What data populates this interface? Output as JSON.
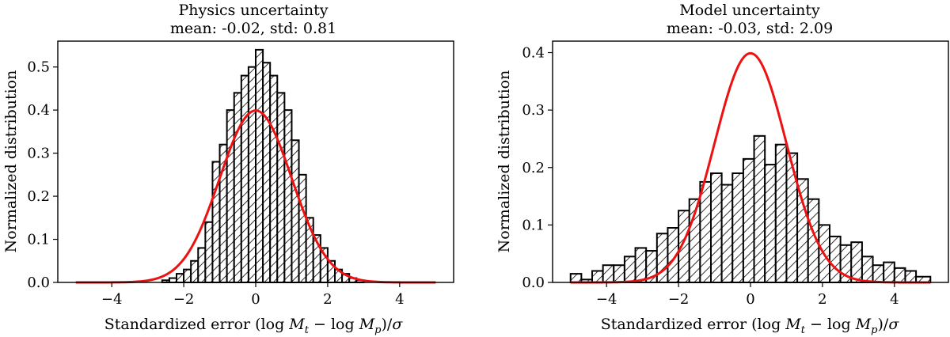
{
  "chart_data": [
    {
      "type": "histogram",
      "title": "Physics uncertainty",
      "subtitle": "mean: -0.02, std: 0.81",
      "xlabel": "Standardized error (log M_t − log M_p)/σ",
      "ylabel": "Normalized distribution",
      "xlim": [
        -5.5,
        5.5
      ],
      "ylim": [
        0,
        0.56
      ],
      "xticks": [
        -4,
        -2,
        0,
        2,
        4
      ],
      "xtick_labels": [
        "−4",
        "−2",
        "0",
        "2",
        "4"
      ],
      "yticks": [
        0.0,
        0.1,
        0.2,
        0.3,
        0.4,
        0.5
      ],
      "ytick_labels": [
        "0.0",
        "0.1",
        "0.2",
        "0.3",
        "0.4",
        "0.5"
      ],
      "bin_edges": [
        -2.8,
        -2.6,
        -2.4,
        -2.2,
        -2.0,
        -1.8,
        -1.6,
        -1.4,
        -1.2,
        -1.0,
        -0.8,
        -0.6,
        -0.4,
        -0.2,
        0.0,
        0.2,
        0.4,
        0.6,
        0.8,
        1.0,
        1.2,
        1.4,
        1.6,
        1.8,
        2.0,
        2.2,
        2.4,
        2.6,
        2.8,
        3.0
      ],
      "bin_values": [
        0.0,
        0.005,
        0.01,
        0.02,
        0.03,
        0.05,
        0.08,
        0.14,
        0.28,
        0.32,
        0.4,
        0.44,
        0.48,
        0.5,
        0.54,
        0.51,
        0.48,
        0.44,
        0.4,
        0.33,
        0.25,
        0.15,
        0.11,
        0.08,
        0.05,
        0.03,
        0.02,
        0.01,
        0.005
      ],
      "reference_curve": {
        "type": "normal",
        "mean": 0,
        "std": 1,
        "range": [
          -5,
          5
        ],
        "color": "#ee1111"
      },
      "grid": false
    },
    {
      "type": "histogram",
      "title": "Model uncertainty",
      "subtitle": "mean: -0.03, std: 2.09",
      "xlabel": "Standardized error (log M_t − log M_p)/σ",
      "ylabel": "Normalized distribution",
      "xlim": [
        -5.5,
        5.5
      ],
      "ylim": [
        0,
        0.42
      ],
      "xticks": [
        -4,
        -2,
        0,
        2,
        4
      ],
      "xtick_labels": [
        "−4",
        "−2",
        "0",
        "2",
        "4"
      ],
      "yticks": [
        0.0,
        0.1,
        0.2,
        0.3,
        0.4
      ],
      "ytick_labels": [
        "0.0",
        "0.1",
        "0.2",
        "0.3",
        "0.4"
      ],
      "bin_edges": [
        -5.0,
        -4.7,
        -4.4,
        -4.1,
        -3.8,
        -3.5,
        -3.2,
        -2.9,
        -2.6,
        -2.3,
        -2.0,
        -1.7,
        -1.4,
        -1.1,
        -0.8,
        -0.5,
        -0.2,
        0.1,
        0.4,
        0.7,
        1.0,
        1.3,
        1.6,
        1.9,
        2.2,
        2.5,
        2.8,
        3.1,
        3.4,
        3.7,
        4.0,
        4.3,
        4.6,
        5.0
      ],
      "bin_values": [
        0.015,
        0.005,
        0.02,
        0.03,
        0.03,
        0.045,
        0.06,
        0.055,
        0.085,
        0.095,
        0.125,
        0.145,
        0.175,
        0.19,
        0.17,
        0.19,
        0.215,
        0.255,
        0.205,
        0.24,
        0.225,
        0.18,
        0.145,
        0.1,
        0.08,
        0.065,
        0.07,
        0.045,
        0.03,
        0.035,
        0.025,
        0.02,
        0.01
      ],
      "reference_curve": {
        "type": "normal",
        "mean": 0,
        "std": 1,
        "range": [
          -5,
          5
        ],
        "color": "#ee1111"
      },
      "grid": false
    }
  ]
}
